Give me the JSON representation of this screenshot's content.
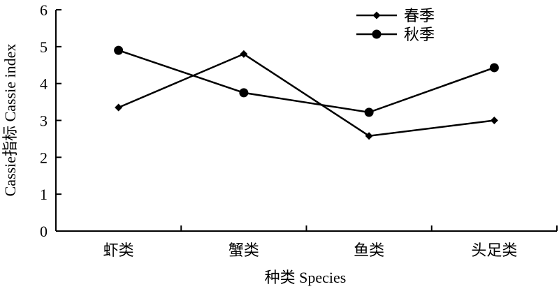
{
  "chart_data": {
    "type": "line",
    "categories": [
      "虾类",
      "蟹类",
      "鱼类",
      "头足类"
    ],
    "series": [
      {
        "name": "春季",
        "marker": "diamond",
        "values": [
          3.35,
          4.8,
          2.58,
          3.0
        ]
      },
      {
        "name": "秋季",
        "marker": "circle",
        "values": [
          4.9,
          3.75,
          3.22,
          4.43
        ]
      }
    ],
    "xlabel": "种类 Species",
    "ylabel": "Cassie指标 Cassie index",
    "ylim": [
      0,
      6
    ],
    "yticks": [
      0,
      1,
      2,
      3,
      4,
      5,
      6
    ],
    "grid": false,
    "legend_position": "top-right",
    "colors": {
      "line": "#000000",
      "background": "#ffffff"
    }
  }
}
